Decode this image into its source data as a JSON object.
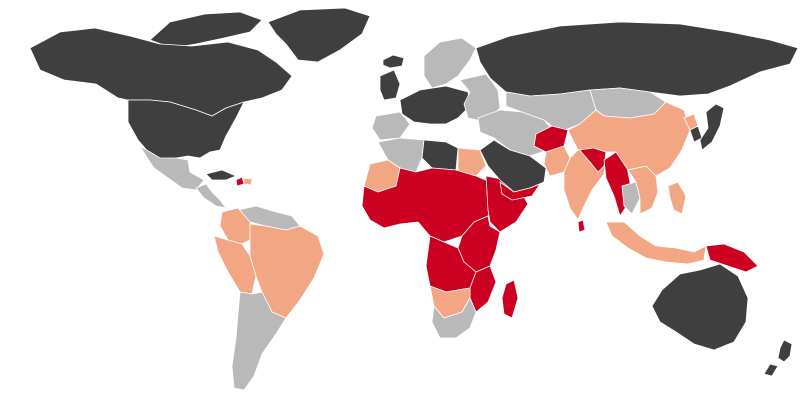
{
  "map": {
    "projection": "world",
    "background": "#ffffff",
    "border_color": "#ffffff",
    "legend": null,
    "categories": [
      {
        "key": "dark",
        "color": "#3f3f3f"
      },
      {
        "key": "gray",
        "color": "#b9b9b9"
      },
      {
        "key": "peach",
        "color": "#f2a683"
      },
      {
        "key": "red",
        "color": "#cc0020"
      }
    ],
    "regions": [
      {
        "name": "canada-alaska",
        "category": "dark"
      },
      {
        "name": "arctic-islands",
        "category": "dark"
      },
      {
        "name": "greenland",
        "category": "dark"
      },
      {
        "name": "iceland",
        "category": "dark"
      },
      {
        "name": "usa",
        "category": "dark"
      },
      {
        "name": "mexico",
        "category": "gray"
      },
      {
        "name": "central-america",
        "category": "gray"
      },
      {
        "name": "caribbean-cuba",
        "category": "dark"
      },
      {
        "name": "haiti",
        "category": "red"
      },
      {
        "name": "dominican-republic",
        "category": "peach"
      },
      {
        "name": "venezuela-guianas",
        "category": "gray"
      },
      {
        "name": "colombia",
        "category": "peach"
      },
      {
        "name": "andean-states",
        "category": "peach"
      },
      {
        "name": "brazil",
        "category": "peach"
      },
      {
        "name": "southern-cone",
        "category": "gray"
      },
      {
        "name": "scandinavia",
        "category": "gray"
      },
      {
        "name": "uk-ireland",
        "category": "dark"
      },
      {
        "name": "western-europe",
        "category": "dark"
      },
      {
        "name": "iberia",
        "category": "gray"
      },
      {
        "name": "eastern-europe",
        "category": "gray"
      },
      {
        "name": "russia",
        "category": "dark"
      },
      {
        "name": "maghreb",
        "category": "gray"
      },
      {
        "name": "western-sahara-mauritania",
        "category": "peach"
      },
      {
        "name": "libya",
        "category": "dark"
      },
      {
        "name": "egypt",
        "category": "peach"
      },
      {
        "name": "sahel-west-central-africa",
        "category": "red"
      },
      {
        "name": "horn-of-africa",
        "category": "red"
      },
      {
        "name": "east-africa",
        "category": "red"
      },
      {
        "name": "angola-zambia",
        "category": "red"
      },
      {
        "name": "namibia-botswana",
        "category": "peach"
      },
      {
        "name": "south-africa",
        "category": "gray"
      },
      {
        "name": "mozambique",
        "category": "red"
      },
      {
        "name": "madagascar",
        "category": "red"
      },
      {
        "name": "arabian-peninsula",
        "category": "dark"
      },
      {
        "name": "yemen",
        "category": "red"
      },
      {
        "name": "middle-east",
        "category": "gray"
      },
      {
        "name": "central-asia",
        "category": "gray"
      },
      {
        "name": "afghanistan",
        "category": "red"
      },
      {
        "name": "pakistan",
        "category": "peach"
      },
      {
        "name": "india",
        "category": "peach"
      },
      {
        "name": "sri-lanka",
        "category": "red"
      },
      {
        "name": "nepal-bangladesh",
        "category": "red"
      },
      {
        "name": "myanmar",
        "category": "red"
      },
      {
        "name": "china",
        "category": "peach"
      },
      {
        "name": "mongolia",
        "category": "gray"
      },
      {
        "name": "korea-north",
        "category": "peach"
      },
      {
        "name": "korea-south",
        "category": "dark"
      },
      {
        "name": "japan",
        "category": "dark"
      },
      {
        "name": "indochina",
        "category": "peach"
      },
      {
        "name": "thailand",
        "category": "gray"
      },
      {
        "name": "indonesia",
        "category": "peach"
      },
      {
        "name": "philippines",
        "category": "peach"
      },
      {
        "name": "papua-new-guinea",
        "category": "red"
      },
      {
        "name": "australia",
        "category": "dark"
      },
      {
        "name": "new-zealand",
        "category": "dark"
      }
    ]
  }
}
